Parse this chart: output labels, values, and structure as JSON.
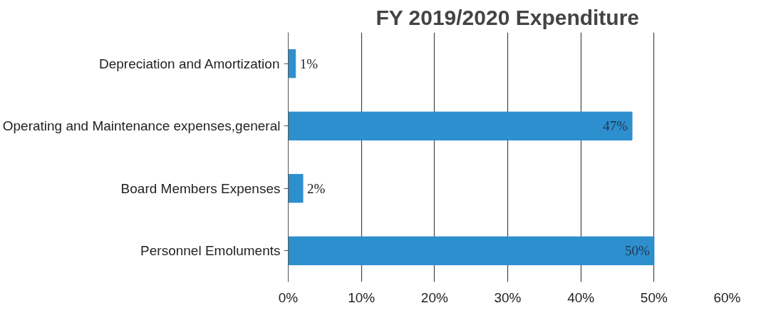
{
  "chart_data": {
    "type": "bar",
    "orientation": "horizontal",
    "title": "FY 2019/2020 Expenditure",
    "categories": [
      "Depreciation and Amortization",
      "Operating and Maintenance expenses,general",
      "Board Members Expenses",
      "Personnel Emoluments"
    ],
    "values": [
      1,
      47,
      2,
      50
    ],
    "color": "#2e8fce",
    "value_labels": [
      "1%",
      "47%",
      "2%",
      "50%"
    ],
    "xlim": [
      0,
      60
    ],
    "xticks": [
      {
        "value": 0,
        "label": "0%"
      },
      {
        "value": 10,
        "label": "10%"
      },
      {
        "value": 20,
        "label": "20%"
      },
      {
        "value": 30,
        "label": "30%"
      },
      {
        "value": 40,
        "label": "40%"
      },
      {
        "value": 50,
        "label": "50%"
      },
      {
        "value": 60,
        "label": "60%"
      }
    ],
    "grid": "x"
  }
}
